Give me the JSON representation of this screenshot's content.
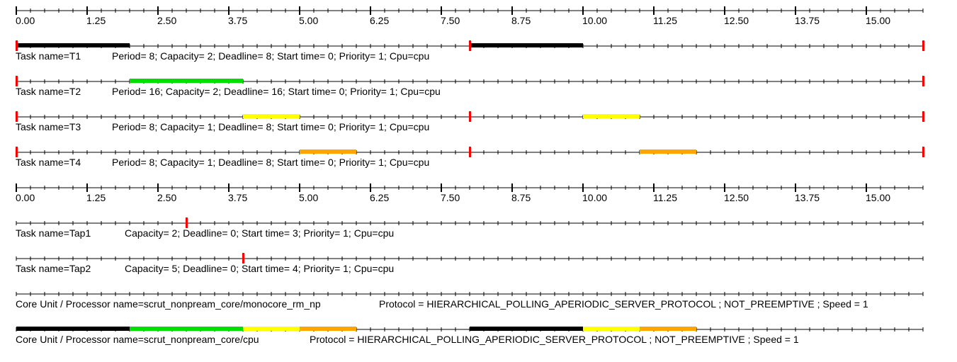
{
  "timeline": {
    "scale": {
      "start": 0,
      "end": 16,
      "major_step": 1.25,
      "minor_step": 0.25
    },
    "tick_labels": [
      "0.00",
      "1.25",
      "2.50",
      "3.75",
      "5.00",
      "6.25",
      "7.50",
      "8.75",
      "10.00",
      "11.25",
      "12.50",
      "13.75",
      "15.00"
    ]
  },
  "colors": {
    "T1": "#000000",
    "T2": "#00e000",
    "T3": "#ffff00",
    "T4": "#ffa500",
    "event_marker": "#ff0000"
  },
  "rows": [
    {
      "id": "T1",
      "name_label": "Task name=T1",
      "params_label": "Period= 8; Capacity= 2; Deadline= 8; Start time= 0; Priority= 1; Cpu=cpu",
      "segments": [
        {
          "start": 0,
          "end": 2,
          "task": "T1"
        },
        {
          "start": 8,
          "end": 10,
          "task": "T1"
        }
      ],
      "markers": [
        0,
        8,
        16
      ]
    },
    {
      "id": "T2",
      "name_label": "Task name=T2",
      "params_label": "Period= 16; Capacity= 2; Deadline= 16; Start time= 0; Priority= 1; Cpu=cpu",
      "segments": [
        {
          "start": 2,
          "end": 4,
          "task": "T2"
        }
      ],
      "markers": [
        0,
        16
      ]
    },
    {
      "id": "T3",
      "name_label": "Task name=T3",
      "params_label": "Period= 8; Capacity= 1; Deadline= 8; Start time= 0; Priority= 1; Cpu=cpu",
      "segments": [
        {
          "start": 4,
          "end": 5,
          "task": "T3"
        },
        {
          "start": 10,
          "end": 11,
          "task": "T3"
        }
      ],
      "markers": [
        0,
        8,
        16
      ]
    },
    {
      "id": "T4",
      "name_label": "Task name=T4",
      "params_label": "Period= 8; Capacity= 1; Deadline= 8; Start time= 0; Priority= 1; Cpu=cpu",
      "segments": [
        {
          "start": 5,
          "end": 6,
          "task": "T4"
        },
        {
          "start": 11,
          "end": 12,
          "task": "T4"
        }
      ],
      "markers": [
        0,
        8,
        16
      ]
    },
    {
      "id": "Tap1",
      "name_label": "Task name=Tap1",
      "params_label": "Capacity= 2; Deadline= 0; Start time= 3; Priority= 1; Cpu=cpu",
      "segments": [],
      "markers": [
        3
      ]
    },
    {
      "id": "Tap2",
      "name_label": "Task name=Tap2",
      "params_label": "Capacity= 5; Deadline= 0; Start time= 4; Priority= 1; Cpu=cpu",
      "segments": [],
      "markers": [
        4
      ]
    },
    {
      "id": "core",
      "name_label": "Core Unit / Processor name=scrut_nonpream_core/monocore_rm_np",
      "params_label": "Protocol = HIERARCHICAL_POLLING_APERIODIC_SERVER_PROTOCOL ; NOT_PREEMPTIVE ; Speed =  1",
      "segments": [],
      "markers": []
    },
    {
      "id": "cpu",
      "name_label": "Core Unit / Processor name=scrut_nonpream_core/cpu",
      "params_label": "Protocol = HIERARCHICAL_POLLING_APERIODIC_SERVER_PROTOCOL ; NOT_PREEMPTIVE ; Speed =  1",
      "segments": [
        {
          "start": 0,
          "end": 2,
          "task": "T1"
        },
        {
          "start": 2,
          "end": 4,
          "task": "T2"
        },
        {
          "start": 4,
          "end": 5,
          "task": "T3"
        },
        {
          "start": 5,
          "end": 6,
          "task": "T4"
        },
        {
          "start": 8,
          "end": 10,
          "task": "T1"
        },
        {
          "start": 10,
          "end": 11,
          "task": "T3"
        },
        {
          "start": 11,
          "end": 12,
          "task": "T4"
        }
      ],
      "markers": []
    }
  ]
}
